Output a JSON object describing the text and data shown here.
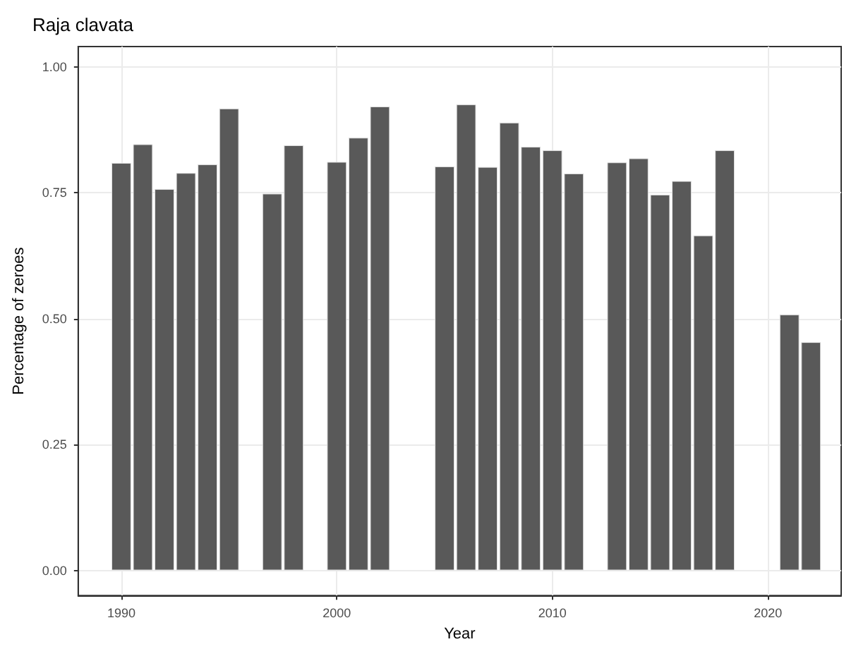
{
  "chart_data": {
    "type": "bar",
    "title": "Raja clavata",
    "xlabel": "Year",
    "ylabel": "Percentage of zeroes",
    "x": [
      1990,
      1991,
      1992,
      1993,
      1994,
      1995,
      1997,
      1998,
      2000,
      2001,
      2002,
      2005,
      2006,
      2007,
      2008,
      2009,
      2010,
      2011,
      2013,
      2014,
      2015,
      2016,
      2017,
      2018,
      2021,
      2022
    ],
    "values": [
      0.809,
      0.846,
      0.757,
      0.789,
      0.806,
      0.917,
      0.748,
      0.844,
      0.811,
      0.859,
      0.921,
      0.802,
      0.925,
      0.801,
      0.889,
      0.841,
      0.834,
      0.788,
      0.81,
      0.818,
      0.746,
      0.773,
      0.665,
      0.834,
      0.508,
      0.453
    ],
    "color": "#595959",
    "xlim": [
      1988,
      2023.4
    ],
    "xticks": [
      1990,
      2000,
      2010,
      2020
    ],
    "ylim": [
      -0.05,
      1.04
    ],
    "yticks": [
      {
        "value": 0,
        "label": "0.00"
      },
      {
        "value": 0.25,
        "label": "0.25"
      },
      {
        "value": 0.5,
        "label": "0.50"
      },
      {
        "value": 0.75,
        "label": "0.75"
      },
      {
        "value": 1,
        "label": "1.00"
      }
    ],
    "grid": true
  }
}
